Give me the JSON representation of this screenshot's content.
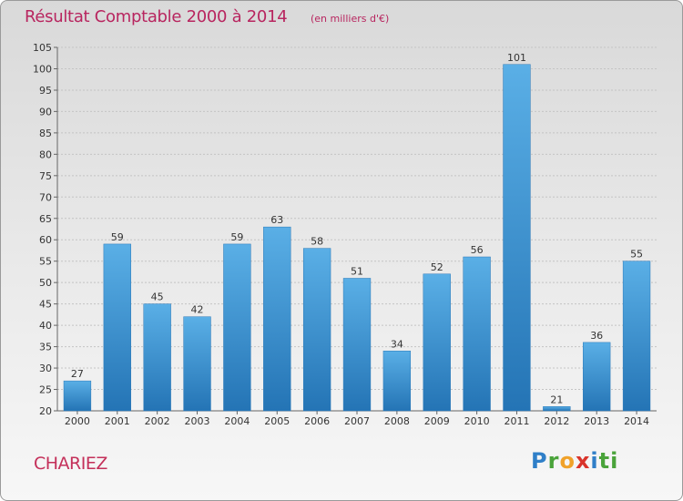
{
  "header": {
    "title": "Résultat Comptable 2000 à 2014",
    "subtitle": "(en milliers d'€)"
  },
  "footer": {
    "commune": "CHARIEZ",
    "logo_letters": [
      "P",
      "r",
      "o",
      "x",
      "i",
      "ti"
    ]
  },
  "chart_data": {
    "type": "bar",
    "title": "Résultat Comptable 2000 à 2014",
    "subtitle": "(en milliers d'€)",
    "categories": [
      "2000",
      "2001",
      "2002",
      "2003",
      "2004",
      "2005",
      "2006",
      "2007",
      "2008",
      "2009",
      "2010",
      "2011",
      "2012",
      "2013",
      "2014"
    ],
    "values": [
      27,
      59,
      45,
      42,
      59,
      63,
      58,
      51,
      34,
      52,
      56,
      101,
      21,
      36,
      55
    ],
    "ylim": [
      20,
      105
    ],
    "yticks": [
      20,
      25,
      30,
      35,
      40,
      45,
      50,
      55,
      60,
      65,
      70,
      75,
      80,
      85,
      90,
      95,
      100,
      105
    ],
    "grid": true,
    "bar_color": "#3d94d6"
  }
}
